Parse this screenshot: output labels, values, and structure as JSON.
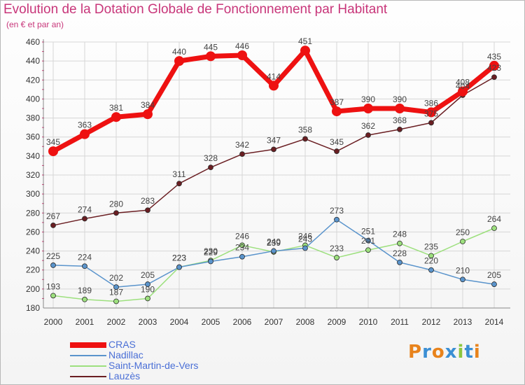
{
  "title": "Evolution de la Dotation Globale de Fonctionnement par Habitant",
  "subtitle": "(en € et par an)",
  "logo_text": "Proxiti",
  "colors": {
    "title": "#c8367a",
    "grid": "#d6d6d6",
    "axis_ticks": "#d03070"
  },
  "chart_data": {
    "type": "line",
    "x": [
      2000,
      2001,
      2002,
      2003,
      2004,
      2005,
      2006,
      2007,
      2008,
      2009,
      2010,
      2011,
      2012,
      2013,
      2014
    ],
    "ylim": [
      180,
      460
    ],
    "yticks": [
      180,
      200,
      220,
      240,
      260,
      280,
      300,
      320,
      340,
      360,
      380,
      400,
      420,
      440,
      460
    ],
    "grid": true,
    "legend_position": "bottom-left",
    "series": [
      {
        "name": "Lauzès",
        "color": "#6a1e22",
        "width": 1.5,
        "marker": 3.5,
        "values": [
          267,
          274,
          280,
          283,
          311,
          328,
          342,
          347,
          358,
          345,
          362,
          368,
          375,
          404,
          423
        ],
        "labels": [
          "267",
          "274",
          "280",
          "283",
          "311",
          "328",
          "342",
          "347",
          "358",
          "345",
          "362",
          "368",
          "375",
          "404",
          "423"
        ]
      },
      {
        "name": "Saint-Martin-de-Vers",
        "color": "#9de07e",
        "width": 1.5,
        "marker": 3.5,
        "values": [
          193,
          189,
          187,
          190,
          223,
          230,
          246,
          239,
          246,
          233,
          241,
          248,
          235,
          250,
          264
        ],
        "labels": [
          "193",
          "189",
          "187",
          "190",
          "223",
          "230",
          "246",
          "239",
          "246",
          "233",
          "241",
          "248",
          "235",
          "250",
          "264"
        ]
      },
      {
        "name": "Nadillac",
        "color": "#5a94cc",
        "width": 1.5,
        "marker": 3.5,
        "values": [
          225,
          224,
          202,
          205,
          223,
          229,
          234,
          240,
          243,
          273,
          251,
          228,
          220,
          210,
          205
        ],
        "labels": [
          "225",
          "224",
          "202",
          "205",
          "223",
          "229",
          "234",
          "240",
          "243",
          "273",
          "251",
          "228",
          "220",
          "210",
          "205"
        ]
      },
      {
        "name": "CRAS",
        "color": "#ee1111",
        "width": 7,
        "marker": 7,
        "values": [
          345,
          363,
          381,
          384,
          440,
          445,
          446,
          414,
          451,
          387,
          390,
          390,
          386,
          408,
          435
        ],
        "labels": [
          "345",
          "363",
          "381",
          "384",
          "440",
          "445",
          "446",
          "414",
          "451",
          "387",
          "390",
          "390",
          "386",
          "408",
          "435"
        ]
      }
    ]
  },
  "legend": [
    {
      "name": "CRAS",
      "color": "#ee1111",
      "thickness": 8
    },
    {
      "name": "Nadillac",
      "color": "#5a94cc",
      "thickness": 2
    },
    {
      "name": "Saint-Martin-de-Vers",
      "color": "#9de07e",
      "thickness": 2
    },
    {
      "name": "Lauzès",
      "color": "#6a1e22",
      "thickness": 2
    }
  ]
}
